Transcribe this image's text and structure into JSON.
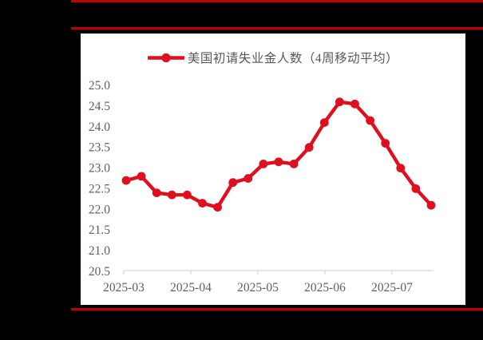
{
  "page": {
    "background_color": "#000000",
    "rule_color": "#c00000",
    "panel_color": "#ffffff"
  },
  "chart_data": {
    "type": "line",
    "title": "",
    "legend": {
      "label": "美国初请失业金人数（4周移动平均）",
      "position": "top-center",
      "marker": "line-with-circle"
    },
    "series": [
      {
        "name": "美国初请失业金人数（4周移动平均）",
        "color": "#df0f1f",
        "values": [
          22.7,
          22.8,
          22.4,
          22.35,
          22.35,
          22.15,
          22.05,
          22.65,
          22.75,
          23.1,
          23.15,
          23.1,
          23.5,
          24.1,
          24.6,
          24.55,
          24.15,
          23.6,
          23.0,
          22.5,
          22.1
        ]
      }
    ],
    "x_tick_labels": [
      "2025-03",
      "2025-04",
      "2025-05",
      "2025-06",
      "2025-07"
    ],
    "y_tick_labels": [
      "25.0",
      "24.5",
      "24.0",
      "23.5",
      "23.0",
      "22.5",
      "22.0",
      "21.5",
      "21.0",
      "20.5"
    ],
    "ylim": [
      20.5,
      25.0
    ],
    "grid": false,
    "legend_position": "top-center",
    "axis_color": "#d6d6d6",
    "label_color": "#5f5f5f"
  }
}
